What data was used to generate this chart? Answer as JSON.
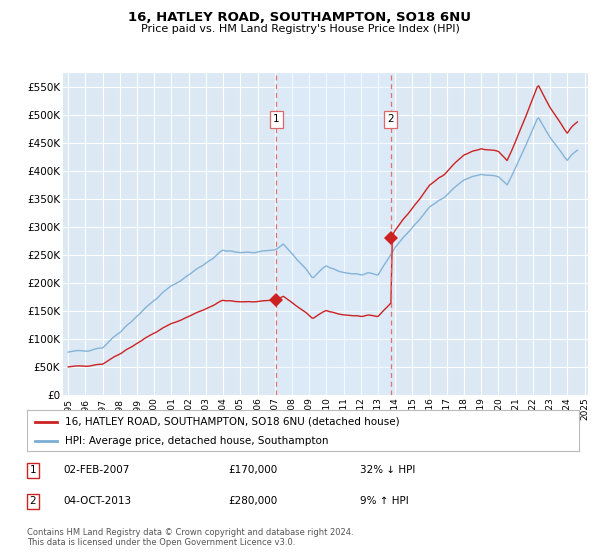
{
  "title": "16, HATLEY ROAD, SOUTHAMPTON, SO18 6NU",
  "subtitle": "Price paid vs. HM Land Registry's House Price Index (HPI)",
  "background_color": "#ffffff",
  "plot_bg_color": "#dce9f5",
  "grid_color": "#ffffff",
  "ylim": [
    0,
    575000
  ],
  "yticks": [
    0,
    50000,
    100000,
    150000,
    200000,
    250000,
    300000,
    350000,
    400000,
    450000,
    500000,
    550000
  ],
  "ytick_labels": [
    "£0",
    "£50K",
    "£100K",
    "£150K",
    "£200K",
    "£250K",
    "£300K",
    "£350K",
    "£400K",
    "£450K",
    "£500K",
    "£550K"
  ],
  "hpi_color": "#7aadd4",
  "price_color": "#cc2222",
  "vline_color": "#dd6666",
  "shade_color": "#ddeeff",
  "annotation_1": {
    "date_x": 2007.083,
    "price": 170000,
    "label": "1"
  },
  "annotation_2": {
    "date_x": 2013.75,
    "price": 280000,
    "label": "2"
  },
  "legend_entries": [
    "16, HATLEY ROAD, SOUTHAMPTON, SO18 6NU (detached house)",
    "HPI: Average price, detached house, Southampton"
  ],
  "table_rows": [
    [
      "1",
      "02-FEB-2007",
      "£170,000",
      "32% ↓ HPI"
    ],
    [
      "2",
      "04-OCT-2013",
      "£280,000",
      "9% ↑ HPI"
    ]
  ],
  "footer": "Contains HM Land Registry data © Crown copyright and database right 2024.\nThis data is licensed under the Open Government Licence v3.0.",
  "sale1_x": 2007.083,
  "sale2_x": 2013.75,
  "xmin": 1994.7,
  "xmax": 2025.2,
  "xtick_years": [
    1995,
    1996,
    1997,
    1998,
    1999,
    2000,
    2001,
    2002,
    2003,
    2004,
    2005,
    2006,
    2007,
    2008,
    2009,
    2010,
    2011,
    2012,
    2013,
    2014,
    2015,
    2016,
    2017,
    2018,
    2019,
    2020,
    2021,
    2022,
    2023,
    2024,
    2025
  ]
}
